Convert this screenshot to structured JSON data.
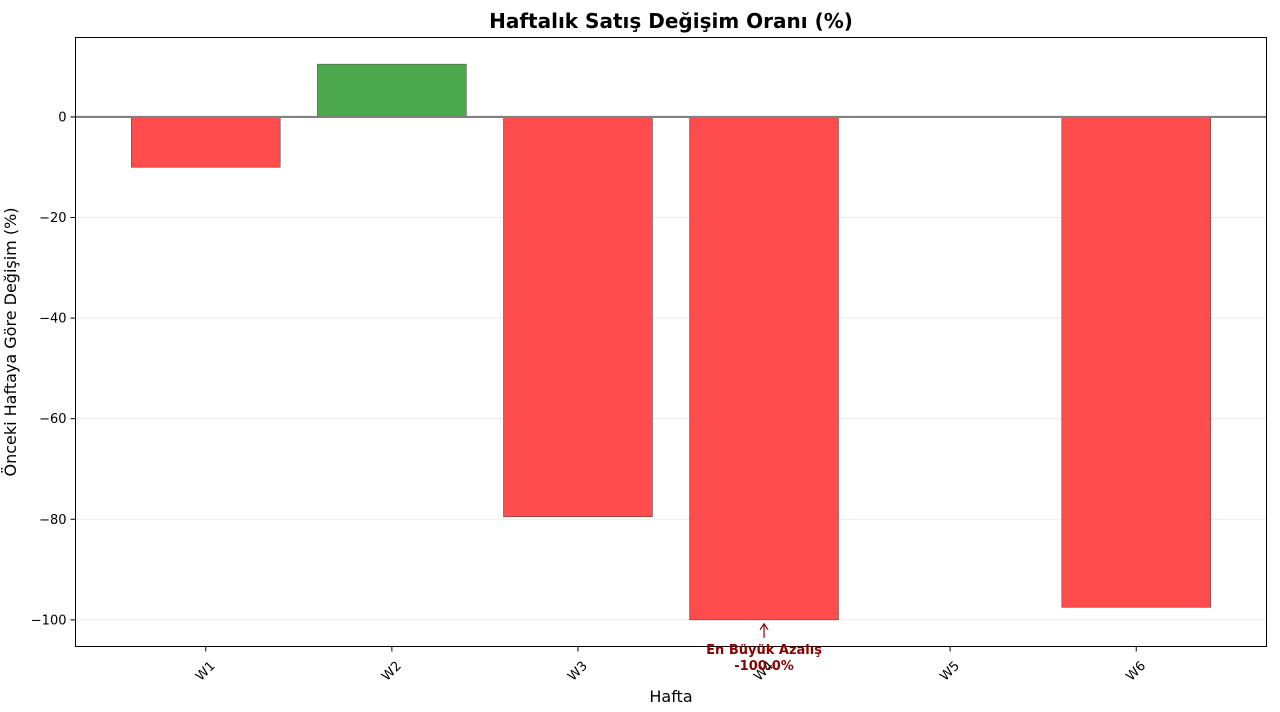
{
  "chart_data": {
    "type": "bar",
    "title": "Haftalık Satış Değişim Oranı (%)",
    "xlabel": "Hafta",
    "ylabel": "Önceki Haftaya Göre Değişim (%)",
    "categories": [
      "W1",
      "W2",
      "W3",
      "W4",
      "W5",
      "W6"
    ],
    "values": [
      -10.0,
      10.5,
      -79.5,
      -100.0,
      0,
      -97.5
    ],
    "ylim": [
      -105.3,
      15.8
    ],
    "yticks": [
      0,
      -20,
      -40,
      -60,
      -80,
      -100
    ],
    "ytick_labels": [
      "0",
      "−20",
      "−40",
      "−60",
      "−80",
      "−100"
    ],
    "grid": "y",
    "colors": {
      "positive": "#4ca84c",
      "negative": "#ff4c4c",
      "zero_line": "#808080",
      "annotation": "#8b0000"
    },
    "annotation": {
      "category": "W4",
      "value": -100.0,
      "line1": "En Büyük Azalış",
      "line2": "-100.0%"
    }
  }
}
